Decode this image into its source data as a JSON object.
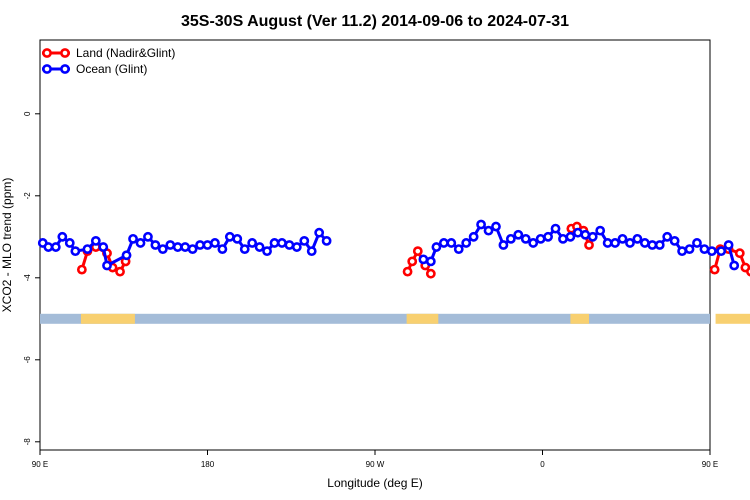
{
  "chart_data": {
    "type": "line",
    "title": "35S-30S August (Ver 11.2)   2014-09-06 to 2024-07-31",
    "xlabel": "Longitude (deg E)",
    "ylabel": "XCO2 - MLO trend (ppm)",
    "xlim": [
      90,
      450
    ],
    "ylim": [
      -8.2,
      1.8
    ],
    "xticks": [
      {
        "value": 90,
        "label": "90 E"
      },
      {
        "value": 180,
        "label": "180"
      },
      {
        "value": 270,
        "label": "90 W"
      },
      {
        "value": 360,
        "label": "0"
      },
      {
        "value": 450,
        "label": "90 E"
      },
      {
        "value": 540,
        "label": "180"
      }
    ],
    "yticks": [
      {
        "value": 0,
        "label": "0"
      },
      {
        "value": -2,
        "label": "-2"
      },
      {
        "value": -4,
        "label": "-4"
      },
      {
        "value": -6,
        "label": "-6"
      },
      {
        "value": -8,
        "label": "-8"
      }
    ],
    "legend": {
      "position": "top-left"
    },
    "grid": false,
    "landmask": {
      "y": -5,
      "ocean_color": "#a4bcd8",
      "land_color": "#f8d070",
      "land_ranges": [
        [
          112,
          141
        ],
        [
          287,
          304
        ],
        [
          375,
          385
        ],
        [
          453,
          478
        ]
      ]
    },
    "series": [
      {
        "name": "Land (Nadir&Glint)",
        "color": "#ff0000",
        "segments": [
          [
            [
              112.5,
              -3.8
            ],
            [
              115.5,
              -3.35
            ],
            [
              120,
              -3.25
            ],
            [
              126,
              -3.4
            ],
            [
              129,
              -3.75
            ],
            [
              133,
              -3.85
            ],
            [
              136,
              -3.6
            ]
          ],
          [
            [
              287.5,
              -3.85
            ],
            [
              290,
              -3.6
            ],
            [
              293,
              -3.35
            ],
            [
              297,
              -3.7
            ],
            [
              300,
              -3.9
            ]
          ],
          [
            [
              375.5,
              -2.8
            ],
            [
              378.5,
              -2.75
            ],
            [
              382,
              -2.85
            ],
            [
              385,
              -3.2
            ]
          ],
          [
            [
              452.5,
              -3.8
            ],
            [
              455.5,
              -3.3
            ],
            [
              460,
              -3.3
            ],
            [
              466,
              -3.4
            ],
            [
              469,
              -3.75
            ],
            [
              472,
              -3.85
            ],
            [
              476,
              -3.6
            ]
          ]
        ]
      },
      {
        "name": "Ocean (Glint)",
        "color": "#0000ff",
        "segments": [
          [
            [
              91.5,
              -3.15
            ],
            [
              94.5,
              -3.25
            ],
            [
              98.5,
              -3.25
            ],
            [
              102,
              -3.0
            ],
            [
              106,
              -3.15
            ],
            [
              109,
              -3.35
            ],
            [
              115.5,
              -3.3
            ],
            [
              120,
              -3.1
            ],
            [
              124,
              -3.25
            ],
            [
              126,
              -3.7
            ],
            [
              136.5,
              -3.45
            ],
            [
              140,
              -3.05
            ],
            [
              144,
              -3.15
            ],
            [
              148,
              -3.0
            ],
            [
              152,
              -3.2
            ],
            [
              156,
              -3.3
            ],
            [
              160,
              -3.2
            ],
            [
              164,
              -3.25
            ],
            [
              168,
              -3.25
            ],
            [
              172,
              -3.3
            ],
            [
              176,
              -3.2
            ],
            [
              180,
              -3.2
            ],
            [
              184,
              -3.15
            ],
            [
              188,
              -3.3
            ],
            [
              192,
              -3.0
            ],
            [
              196,
              -3.05
            ],
            [
              200,
              -3.3
            ],
            [
              204,
              -3.15
            ],
            [
              208,
              -3.25
            ],
            [
              212,
              -3.35
            ],
            [
              216,
              -3.15
            ],
            [
              220,
              -3.15
            ],
            [
              224,
              -3.2
            ],
            [
              228,
              -3.25
            ],
            [
              232,
              -3.1
            ],
            [
              236,
              -3.35
            ],
            [
              240,
              -2.9
            ],
            [
              244,
              -3.1
            ]
          ],
          [
            [
              296,
              -3.55
            ],
            [
              300,
              -3.6
            ],
            [
              303,
              -3.25
            ],
            [
              307,
              -3.15
            ],
            [
              311,
              -3.15
            ],
            [
              315,
              -3.3
            ],
            [
              319,
              -3.15
            ],
            [
              323,
              -3.0
            ],
            [
              327,
              -2.7
            ],
            [
              331,
              -2.85
            ],
            [
              335,
              -2.75
            ],
            [
              339,
              -3.2
            ],
            [
              343,
              -3.05
            ],
            [
              347,
              -2.95
            ],
            [
              351,
              -3.05
            ],
            [
              355,
              -3.15
            ],
            [
              359,
              -3.05
            ],
            [
              363,
              -3.0
            ],
            [
              367,
              -2.8
            ],
            [
              371,
              -3.05
            ],
            [
              375,
              -3.0
            ],
            [
              379,
              -2.9
            ],
            [
              383,
              -2.95
            ],
            [
              387,
              -3.0
            ],
            [
              391,
              -2.85
            ],
            [
              395,
              -3.15
            ],
            [
              399,
              -3.15
            ],
            [
              403,
              -3.05
            ],
            [
              407,
              -3.15
            ],
            [
              411,
              -3.05
            ],
            [
              415,
              -3.15
            ],
            [
              419,
              -3.2
            ],
            [
              423,
              -3.2
            ],
            [
              427,
              -3.0
            ],
            [
              431,
              -3.1
            ],
            [
              435,
              -3.35
            ],
            [
              439,
              -3.3
            ],
            [
              443,
              -3.15
            ],
            [
              447,
              -3.3
            ],
            [
              451,
              -3.35
            ],
            [
              456,
              -3.35
            ],
            [
              460,
              -3.2
            ],
            [
              463,
              -3.7
            ]
          ],
          [
            [
              476.5,
              -3.45
            ],
            [
              480,
              -3.05
            ],
            [
              484,
              -3.1
            ],
            [
              488,
              -3.05
            ],
            [
              492,
              -3.15
            ],
            [
              496,
              -3.3
            ]
          ]
        ]
      }
    ]
  }
}
